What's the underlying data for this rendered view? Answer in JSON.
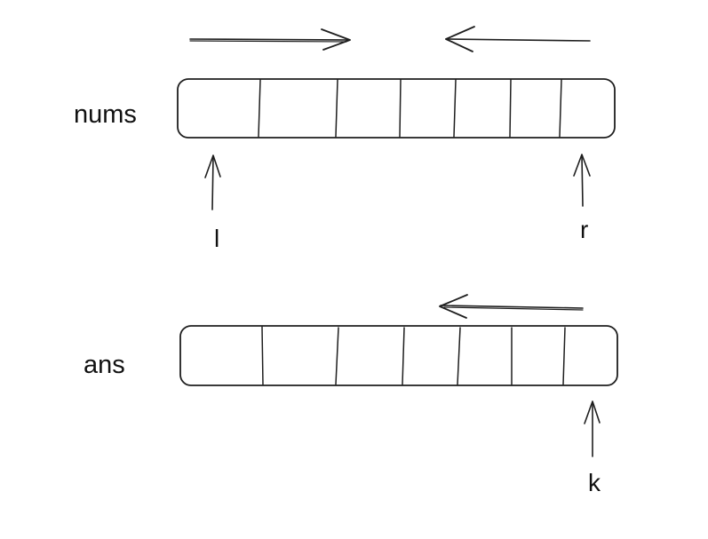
{
  "labels": {
    "nums": "nums",
    "ans": "ans",
    "left_pointer": "l",
    "right_pointer": "r",
    "write_pointer": "k"
  },
  "arrays": {
    "nums_cells": 7,
    "ans_cells": 7
  },
  "colors": {
    "ink": "#1e1e1e",
    "background": "#ffffff"
  }
}
